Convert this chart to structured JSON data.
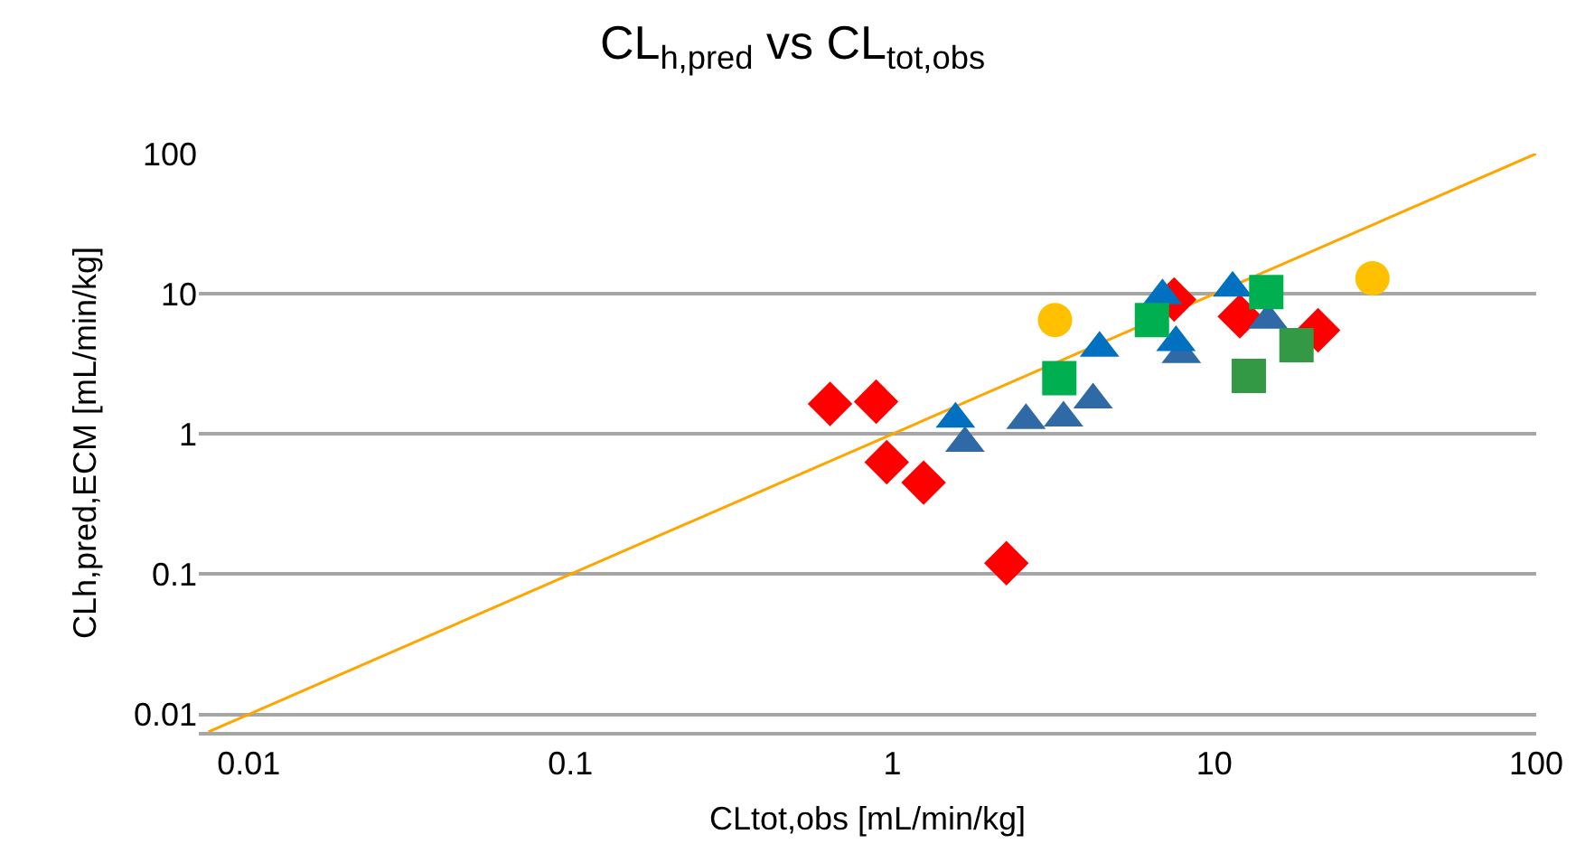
{
  "chart_data": {
    "type": "scatter",
    "title": "CL$_{h,pred}$ vs CL$_{tot,obs}$",
    "xlabel": "CLtot,obs [mL/min/kg]",
    "ylabel": "CLh,pred,ECM [mL/min/kg]",
    "log": "xy",
    "grid": "y",
    "xlim": [
      0.007,
      100
    ],
    "ylim": [
      0.0075,
      100
    ],
    "xticks": [
      0.01,
      0.1,
      1,
      10,
      100
    ],
    "yticks": [
      0.01,
      0.1,
      1,
      10,
      100
    ],
    "series": [
      {
        "type": "line",
        "color": "#ffa500",
        "marker": "none",
        "line_style": "solid",
        "x": [
          0.0075,
          100
        ],
        "values": [
          0.0075,
          100
        ]
      },
      {
        "color": "#ff0000",
        "marker": "diamond",
        "x": [
          0.64,
          0.89,
          0.96,
          1.25,
          2.26,
          7.5,
          12,
          21
        ],
        "values": [
          1.64,
          1.7,
          0.63,
          0.45,
          0.12,
          9.1,
          6.9,
          5.5
        ]
      },
      {
        "color": "#2f69a6",
        "marker": "triangle",
        "x": [
          1.68,
          2.6,
          3.4,
          4.2,
          7.9,
          14.7
        ],
        "values": [
          0.86,
          1.25,
          1.3,
          1.75,
          3.7,
          6.5
        ]
      },
      {
        "color": "#0070c0",
        "marker": "triangle",
        "x": [
          1.57,
          4.4,
          6.9,
          7.6,
          11.4
        ],
        "values": [
          1.28,
          4.1,
          9.7,
          4.5,
          11
        ]
      },
      {
        "color": "#00b050",
        "marker": "square",
        "x": [
          3.3,
          6.4,
          14.5
        ],
        "values": [
          2.5,
          6.5,
          10.3
        ]
      },
      {
        "color": "#339944",
        "marker": "square",
        "x": [
          12.8,
          18
        ],
        "values": [
          2.6,
          4.3
        ]
      },
      {
        "color": "#ffc000",
        "marker": "circle",
        "x": [
          3.2,
          31
        ],
        "values": [
          6.5,
          12.9
        ]
      }
    ]
  }
}
